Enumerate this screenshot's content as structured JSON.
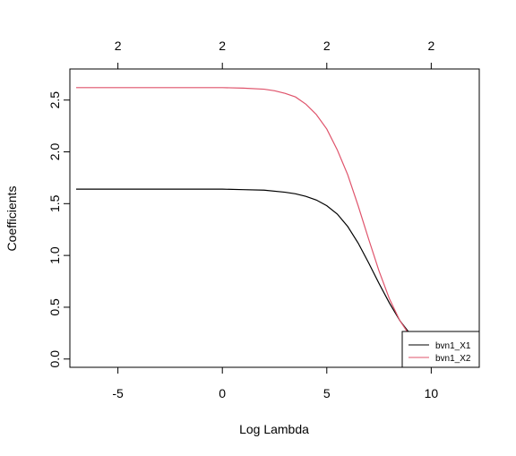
{
  "chart_data": {
    "type": "line",
    "title": "",
    "xlabel": "Log Lambda",
    "ylabel": "Coefficients",
    "xlim": [
      -7.3,
      12.3
    ],
    "ylim": [
      -0.08,
      2.8
    ],
    "x_ticks": [
      -5,
      0,
      5,
      10
    ],
    "x_tick_labels": [
      "-5",
      "0",
      "5",
      "10"
    ],
    "y_ticks": [
      0.0,
      0.5,
      1.0,
      1.5,
      2.0,
      2.5
    ],
    "y_tick_labels": [
      "0.0",
      "0.5",
      "1.0",
      "1.5",
      "2.0",
      "2.5"
    ],
    "top_axis": {
      "ticks": [
        -5,
        0,
        5,
        10
      ],
      "labels": [
        "2",
        "2",
        "2",
        "2"
      ]
    },
    "grid": false,
    "legend": {
      "position": "bottom-right"
    },
    "series": [
      {
        "name": "bvn1_X1",
        "color": "#000000",
        "x": [
          -7,
          -4,
          -2,
          0,
          1,
          2,
          3,
          3.5,
          4,
          4.5,
          5,
          5.5,
          6,
          6.5,
          7,
          7.5,
          8,
          8.5,
          9,
          9.5,
          10,
          10.5,
          11
        ],
        "y": [
          1.64,
          1.64,
          1.64,
          1.64,
          1.635,
          1.63,
          1.61,
          1.595,
          1.57,
          1.535,
          1.48,
          1.4,
          1.28,
          1.12,
          0.93,
          0.73,
          0.54,
          0.37,
          0.24,
          0.14,
          0.08,
          0.04,
          0.02
        ]
      },
      {
        "name": "bvn1_X2",
        "color": "#DF536B",
        "x": [
          -7,
          -4,
          -2,
          0,
          1,
          2,
          2.5,
          3,
          3.5,
          4,
          4.5,
          5,
          5.5,
          6,
          6.5,
          7,
          7.5,
          8,
          8.5,
          9,
          9.5,
          10,
          10.5,
          11
        ],
        "y": [
          2.62,
          2.62,
          2.62,
          2.62,
          2.615,
          2.605,
          2.59,
          2.565,
          2.53,
          2.46,
          2.36,
          2.22,
          2.02,
          1.78,
          1.48,
          1.16,
          0.85,
          0.58,
          0.37,
          0.22,
          0.12,
          0.06,
          0.03,
          0.015
        ]
      }
    ]
  }
}
